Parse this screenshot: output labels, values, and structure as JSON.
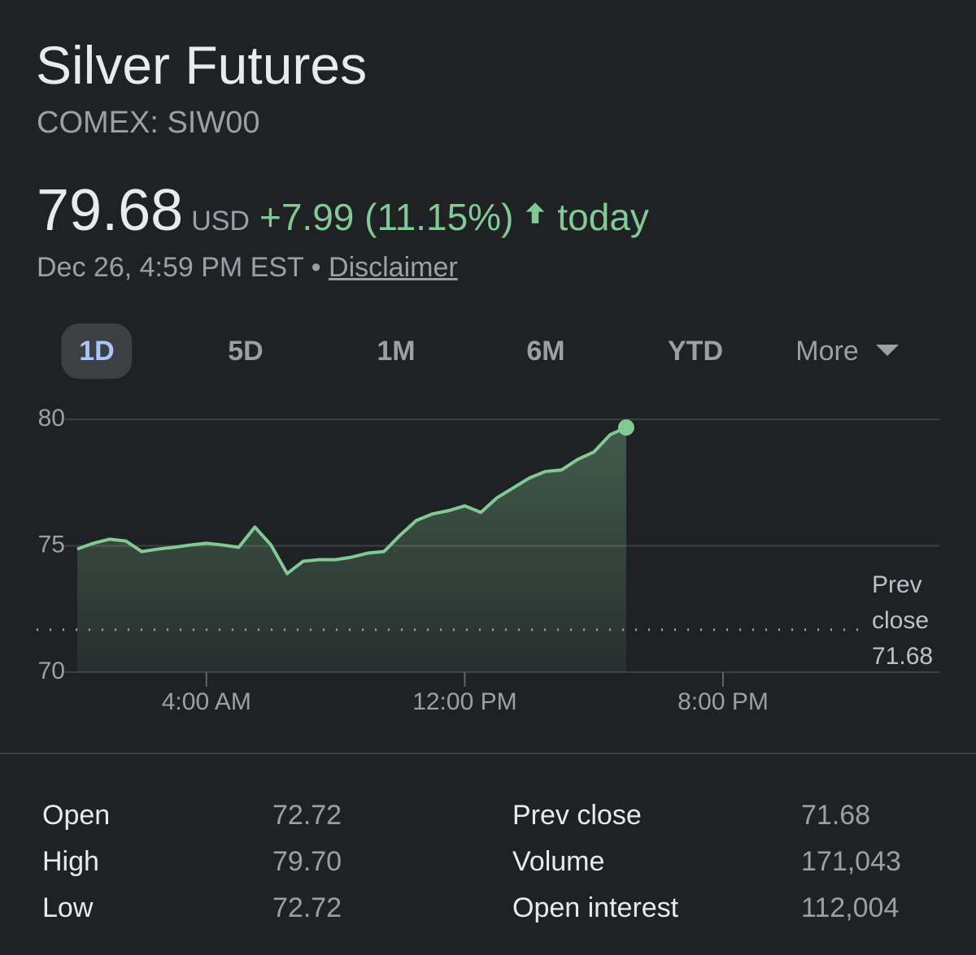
{
  "header": {
    "title": "Silver Futures",
    "exchange": "COMEX: SIW00"
  },
  "quote": {
    "price": "79.68",
    "currency": "USD",
    "change": "+7.99 (11.15%)",
    "suffix": "today",
    "timestamp": "Dec 26, 4:59 PM EST",
    "separator": "•",
    "disclaimer": "Disclaimer"
  },
  "ranges": [
    "1D",
    "5D",
    "1M",
    "6M",
    "YTD",
    "More"
  ],
  "chart_data": {
    "type": "line",
    "x": [
      0,
      0.5,
      1,
      1.5,
      2,
      2.5,
      3,
      3.5,
      4,
      4.5,
      5,
      5.5,
      6,
      6.5,
      7,
      7.5,
      8,
      8.5,
      9,
      9.5,
      10,
      10.5,
      11,
      11.5,
      12,
      12.5,
      13,
      13.5,
      14,
      14.5,
      15,
      15.5,
      16,
      16.5,
      17
    ],
    "values": [
      74.87,
      75.1,
      75.26,
      75.19,
      74.77,
      74.87,
      74.94,
      75.03,
      75.1,
      75.03,
      74.94,
      75.74,
      75.03,
      73.9,
      74.39,
      74.45,
      74.45,
      74.55,
      74.71,
      74.77,
      75.42,
      76.0,
      76.26,
      76.39,
      76.58,
      76.32,
      76.9,
      77.29,
      77.68,
      77.94,
      78.0,
      78.42,
      78.71,
      79.39,
      79.68
    ],
    "color": "#81c995",
    "xlim": [
      0,
      26.7
    ],
    "xticks": [
      {
        "value": 4,
        "label": "4:00 AM"
      },
      {
        "value": 12,
        "label": "12:00 PM"
      },
      {
        "value": 20,
        "label": "8:00 PM"
      }
    ],
    "ylim": [
      70,
      80
    ],
    "yticks": [
      70,
      75,
      80
    ],
    "grid": true,
    "prev_close": 71.68,
    "prev_close_label": "Prev close"
  },
  "stats": {
    "rows": [
      [
        "Open",
        "72.72",
        "Prev close",
        "71.68"
      ],
      [
        "High",
        "79.70",
        "Volume",
        "171,043"
      ],
      [
        "Low",
        "72.72",
        "Open interest",
        "112,004"
      ]
    ]
  }
}
